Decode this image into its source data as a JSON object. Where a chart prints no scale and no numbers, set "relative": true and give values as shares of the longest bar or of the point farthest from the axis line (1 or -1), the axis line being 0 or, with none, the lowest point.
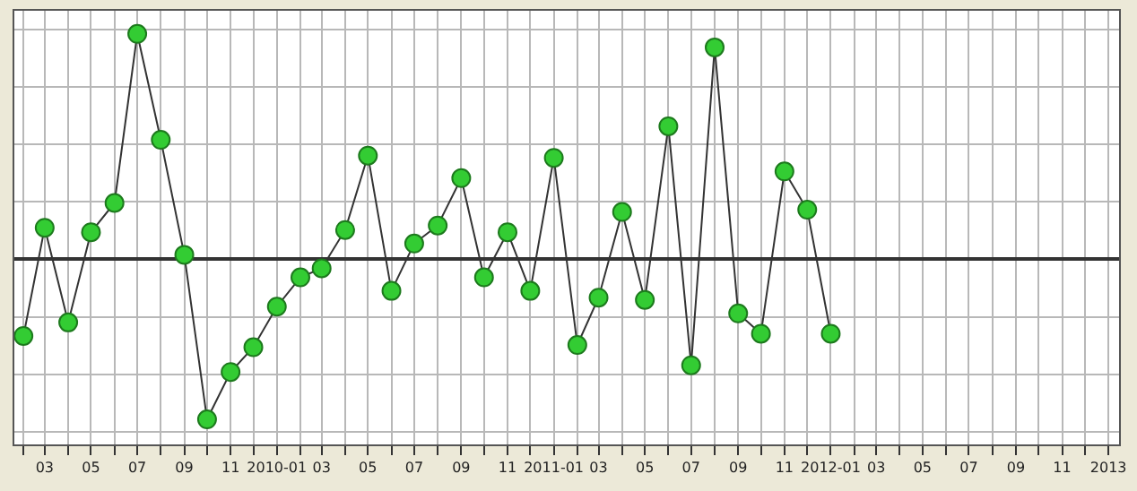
{
  "chart_data": {
    "type": "line",
    "relative": true,
    "marker": "circle",
    "grid": true,
    "x": [
      "2009-02",
      "2009-03",
      "2009-04",
      "2009-05",
      "2009-06",
      "2009-07",
      "2009-08",
      "2009-09",
      "2009-10",
      "2009-11",
      "2009-12",
      "2010-01",
      "2010-02",
      "2010-03",
      "2010-04",
      "2010-05",
      "2010-06",
      "2010-07",
      "2010-08",
      "2010-09",
      "2010-10",
      "2010-11",
      "2010-12",
      "2011-01",
      "2011-02",
      "2011-03",
      "2011-04",
      "2011-05",
      "2011-06",
      "2011-07",
      "2011-08",
      "2011-09",
      "2011-10",
      "2011-11",
      "2011-12",
      "2012-01"
    ],
    "series": [
      {
        "color": "#33cc33",
        "values": [
          -0.34,
          0.14,
          -0.28,
          0.12,
          0.25,
          1,
          0.53,
          0.02,
          -0.71,
          -0.5,
          -0.39,
          -0.21,
          -0.08,
          -0.04,
          0.13,
          0.46,
          -0.14,
          0.07,
          0.15,
          0.36,
          -0.08,
          0.12,
          -0.14,
          0.45,
          -0.38,
          -0.17,
          0.21,
          -0.18,
          0.59,
          -0.47,
          0.94,
          -0.24,
          -0.33,
          0.39,
          0.22,
          -0.33
        ]
      }
    ],
    "xlim": [
      "2009-01-20",
      "2013-01-15"
    ],
    "xticks": [
      {
        "value": "2009-02",
        "label": null
      },
      {
        "value": "2009-03",
        "label": "03"
      },
      {
        "value": "2009-04",
        "label": null
      },
      {
        "value": "2009-05",
        "label": "05"
      },
      {
        "value": "2009-06",
        "label": null
      },
      {
        "value": "2009-07",
        "label": "07"
      },
      {
        "value": "2009-08",
        "label": null
      },
      {
        "value": "2009-09",
        "label": "09"
      },
      {
        "value": "2009-10",
        "label": null
      },
      {
        "value": "2009-11",
        "label": "11"
      },
      {
        "value": "2009-12",
        "label": null
      },
      {
        "value": "2010-01",
        "label": "2010-01"
      },
      {
        "value": "2010-02",
        "label": null
      },
      {
        "value": "2010-03",
        "label": "03"
      },
      {
        "value": "2010-04",
        "label": null
      },
      {
        "value": "2010-05",
        "label": "05"
      },
      {
        "value": "2010-06",
        "label": null
      },
      {
        "value": "2010-07",
        "label": "07"
      },
      {
        "value": "2010-08",
        "label": null
      },
      {
        "value": "2010-09",
        "label": "09"
      },
      {
        "value": "2010-10",
        "label": null
      },
      {
        "value": "2010-11",
        "label": "11"
      },
      {
        "value": "2010-12",
        "label": null
      },
      {
        "value": "2011-01",
        "label": "2011-01"
      },
      {
        "value": "2011-02",
        "label": null
      },
      {
        "value": "2011-03",
        "label": "03"
      },
      {
        "value": "2011-04",
        "label": null
      },
      {
        "value": "2011-05",
        "label": "05"
      },
      {
        "value": "2011-06",
        "label": null
      },
      {
        "value": "2011-07",
        "label": "07"
      },
      {
        "value": "2011-08",
        "label": null
      },
      {
        "value": "2011-09",
        "label": "09"
      },
      {
        "value": "2011-10",
        "label": null
      },
      {
        "value": "2011-11",
        "label": "11"
      },
      {
        "value": "2011-12",
        "label": null
      },
      {
        "value": "2012-01",
        "label": "2012-01"
      },
      {
        "value": "2012-02",
        "label": null
      },
      {
        "value": "2012-03",
        "label": "03"
      },
      {
        "value": "2012-04",
        "label": null
      },
      {
        "value": "2012-05",
        "label": "05"
      },
      {
        "value": "2012-06",
        "label": null
      },
      {
        "value": "2012-07",
        "label": "07"
      },
      {
        "value": "2012-08",
        "label": null
      },
      {
        "value": "2012-09",
        "label": "09"
      },
      {
        "value": "2012-10",
        "label": null
      },
      {
        "value": "2012-11",
        "label": "11"
      },
      {
        "value": "2012-12",
        "label": null
      },
      {
        "value": "2013-01",
        "label": "2013"
      }
    ]
  }
}
